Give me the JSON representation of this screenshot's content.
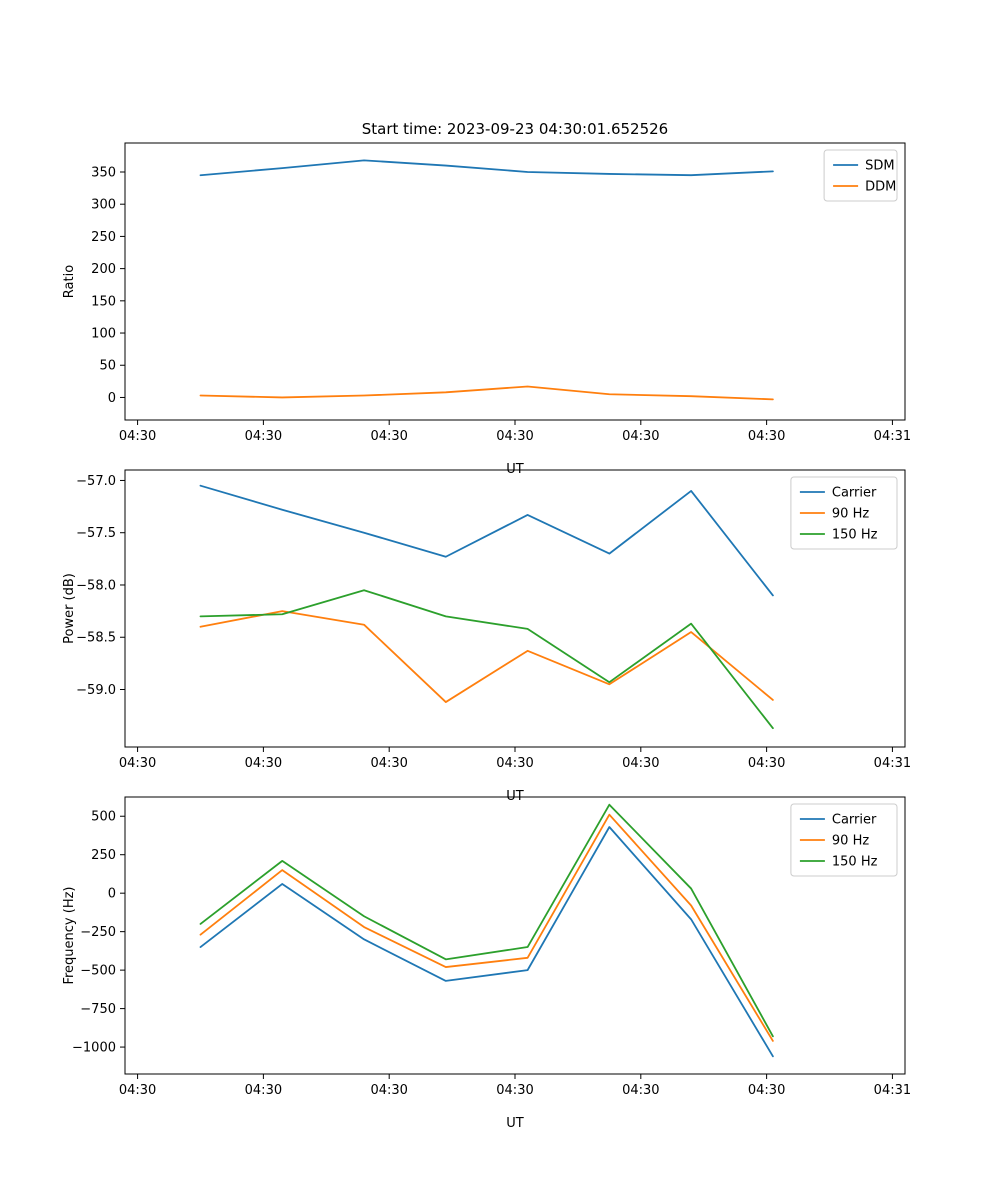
{
  "title": "Start time: 2023-09-23 04:30:01.652526",
  "palette": {
    "blue": "#1f77b4",
    "orange": "#ff7f0e",
    "green": "#2ca02c",
    "legend_edge": "#cccccc",
    "axes_edge": "#000000",
    "background": "#ffffff"
  },
  "chart_data": [
    {
      "type": "line",
      "name": "ratio",
      "xlabel": "UT",
      "ylabel": "Ratio",
      "xlim": [
        -1,
        61
      ],
      "ylim": [
        -35,
        395
      ],
      "x_units": "seconds after 04:30:00 UT",
      "xticks": {
        "values": [
          0,
          10,
          20,
          30,
          40,
          50,
          60
        ],
        "labels": [
          "04:30",
          "04:30",
          "04:30",
          "04:30",
          "04:30",
          "04:30",
          "04:31"
        ]
      },
      "yticks": {
        "values": [
          0,
          50,
          100,
          150,
          200,
          250,
          300,
          350
        ],
        "labels": [
          "0",
          "50",
          "100",
          "150",
          "200",
          "250",
          "300",
          "350"
        ]
      },
      "x": [
        5,
        11.5,
        18,
        24.5,
        31,
        37.5,
        44,
        50.5
      ],
      "series": [
        {
          "name": "SDM",
          "color": "#1f77b4",
          "values": [
            345,
            356,
            368,
            360,
            350,
            347,
            345,
            351
          ]
        },
        {
          "name": "DDM",
          "color": "#ff7f0e",
          "values": [
            3,
            0,
            3,
            8,
            17,
            5,
            2,
            -3
          ]
        }
      ],
      "legend_position": "upper right",
      "grid": false
    },
    {
      "type": "line",
      "name": "power",
      "xlabel": "UT",
      "ylabel": "Power (dB)",
      "xlim": [
        -1,
        61
      ],
      "ylim": [
        -59.55,
        -56.9
      ],
      "x_units": "seconds after 04:30:00 UT",
      "xticks": {
        "values": [
          0,
          10,
          20,
          30,
          40,
          50,
          60
        ],
        "labels": [
          "04:30",
          "04:30",
          "04:30",
          "04:30",
          "04:30",
          "04:30",
          "04:31"
        ]
      },
      "yticks": {
        "values": [
          -59.0,
          -58.5,
          -58.0,
          -57.5,
          -57.0
        ],
        "labels": [
          "−59.0",
          "−58.5",
          "−58.0",
          "−57.5",
          "−57.0"
        ]
      },
      "x": [
        5,
        11.5,
        18,
        24.5,
        31,
        37.5,
        44,
        50.5
      ],
      "series": [
        {
          "name": "Carrier",
          "color": "#1f77b4",
          "values": [
            -57.05,
            -57.28,
            -57.5,
            -57.73,
            -57.33,
            -57.7,
            -57.1,
            -58.1
          ]
        },
        {
          "name": "90 Hz",
          "color": "#ff7f0e",
          "values": [
            -58.4,
            -58.25,
            -58.38,
            -59.12,
            -58.63,
            -58.95,
            -58.45,
            -59.1
          ]
        },
        {
          "name": "150 Hz",
          "color": "#2ca02c",
          "values": [
            -58.3,
            -58.28,
            -58.05,
            -58.3,
            -58.42,
            -58.93,
            -58.37,
            -59.37
          ]
        }
      ],
      "legend_position": "upper right",
      "grid": false
    },
    {
      "type": "line",
      "name": "frequency",
      "xlabel": "UT",
      "ylabel": "Frequency (Hz)",
      "xlim": [
        -1,
        61
      ],
      "ylim": [
        -1175,
        625
      ],
      "x_units": "seconds after 04:30:00 UT",
      "xticks": {
        "values": [
          0,
          10,
          20,
          30,
          40,
          50,
          60
        ],
        "labels": [
          "04:30",
          "04:30",
          "04:30",
          "04:30",
          "04:30",
          "04:30",
          "04:31"
        ]
      },
      "yticks": {
        "values": [
          -1000,
          -750,
          -500,
          -250,
          0,
          250,
          500
        ],
        "labels": [
          "−1000",
          "−750",
          "−500",
          "−250",
          "0",
          "250",
          "500"
        ]
      },
      "x": [
        5,
        11.5,
        18,
        24.5,
        31,
        37.5,
        44,
        50.5
      ],
      "series": [
        {
          "name": "Carrier",
          "color": "#1f77b4",
          "values": [
            -350,
            60,
            -300,
            -570,
            -500,
            430,
            -170,
            -1060
          ]
        },
        {
          "name": "90 Hz",
          "color": "#ff7f0e",
          "values": [
            -270,
            150,
            -220,
            -480,
            -420,
            510,
            -80,
            -960
          ]
        },
        {
          "name": "150 Hz",
          "color": "#2ca02c",
          "values": [
            -200,
            210,
            -150,
            -430,
            -350,
            575,
            30,
            -930
          ]
        }
      ],
      "legend_position": "upper right",
      "grid": false
    }
  ]
}
